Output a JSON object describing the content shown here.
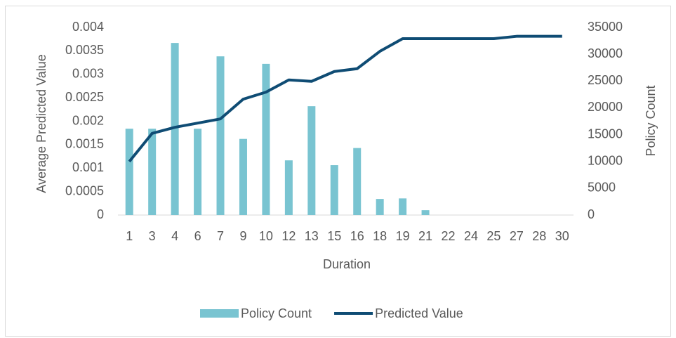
{
  "chart_data": {
    "type": "combo",
    "x_label": "Duration",
    "y_label": "Average Predicted Value",
    "y2_label": "Policy Count",
    "categories": [
      "1",
      "3",
      "4",
      "6",
      "7",
      "9",
      "10",
      "12",
      "13",
      "15",
      "16",
      "18",
      "19",
      "21",
      "22",
      "24",
      "25",
      "27",
      "28",
      "30"
    ],
    "series": [
      {
        "name": "Policy Count",
        "type": "bar",
        "axis": "y2",
        "color": "#79c4d1",
        "values": [
          16100,
          16100,
          32100,
          16100,
          29600,
          14200,
          28200,
          10200,
          20300,
          9300,
          12500,
          3000,
          3100,
          900,
          0,
          0,
          0,
          0,
          0,
          0
        ]
      },
      {
        "name": "Predicted Value",
        "type": "line",
        "color": "#0f4c74",
        "values": [
          0.00114,
          0.00174,
          0.00187,
          0.00196,
          0.00205,
          0.00247,
          0.00262,
          0.00288,
          0.00285,
          0.00306,
          0.00312,
          0.00349,
          0.00376,
          0.00376,
          0.00376,
          0.00376,
          0.00376,
          0.00381,
          0.00381,
          0.00381
        ]
      }
    ],
    "ylim": [
      0,
      0.004
    ],
    "yticks": [
      0,
      0.0005,
      0.001,
      0.0015,
      0.002,
      0.0025,
      0.003,
      0.0035,
      0.004
    ],
    "y2lim": [
      0,
      35000
    ],
    "y2ticks": [
      0,
      5000,
      10000,
      15000,
      20000,
      25000,
      30000,
      35000
    ],
    "legend": "bottom"
  }
}
